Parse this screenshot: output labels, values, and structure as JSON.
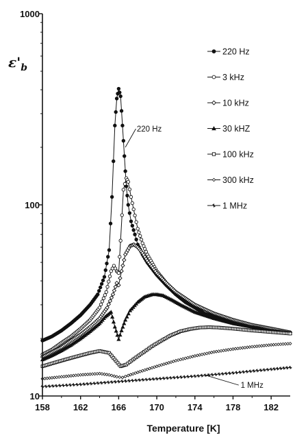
{
  "chart_data": {
    "type": "line",
    "ylabel": "ε'b",
    "xlabel": "Temperature [K]",
    "xlim": [
      158,
      184
    ],
    "ylim": [
      10,
      1000
    ],
    "yscale": "log",
    "x_ticks": [
      158,
      162,
      166,
      170,
      174,
      178,
      182
    ],
    "y_ticks": [
      10,
      100,
      1000
    ],
    "legend_position": "top-right",
    "grid": false,
    "annotations": [
      {
        "text": "220 Hz",
        "x": 166.6,
        "y": 230
      },
      {
        "text": "1 MHz",
        "x": 180,
        "y": 11.5
      }
    ],
    "series": [
      {
        "name": "220 Hz",
        "marker": "filled-circle",
        "x": [
          158,
          159,
          160,
          161,
          162,
          163,
          163.8,
          164.5,
          165,
          165.3,
          165.6,
          165.8,
          166,
          166.2,
          166.4,
          166.6,
          166.8,
          167,
          167.3,
          167.7,
          168,
          168.5,
          169,
          170,
          171,
          172,
          173,
          174,
          175,
          176,
          178,
          180,
          182,
          184
        ],
        "y": [
          19.5,
          20.5,
          22,
          24,
          26.5,
          30,
          34,
          42,
          58,
          110,
          260,
          360,
          405,
          370,
          260,
          180,
          125,
          100,
          82,
          70,
          62,
          55,
          50,
          43,
          38,
          34,
          31,
          29,
          27,
          26,
          24,
          23,
          22,
          21.5
        ]
      },
      {
        "name": "3 kHz",
        "marker": "open-circle",
        "x": [
          158,
          159,
          160,
          161,
          162,
          163,
          164,
          164.7,
          165.2,
          165.5,
          165.8,
          166,
          166.2,
          166.5,
          166.8,
          167,
          167.3,
          167.7,
          168,
          168.5,
          169,
          170,
          171,
          172,
          174,
          176,
          178,
          180,
          182,
          184
        ],
        "y": [
          16.5,
          17.5,
          19,
          20.5,
          22.5,
          25,
          29,
          35,
          45,
          48,
          45,
          44,
          65,
          120,
          138,
          132,
          110,
          88,
          75,
          63,
          55,
          45,
          39,
          35,
          30,
          27,
          25,
          23.5,
          22.5,
          21.5
        ]
      },
      {
        "name": "10 kHz",
        "marker": "diamond",
        "x": [
          158,
          159,
          160,
          161,
          162,
          163,
          164,
          164.8,
          165.4,
          165.8,
          166,
          166.3,
          166.7,
          167.2,
          167.6,
          168,
          168.5,
          169,
          170,
          171,
          172,
          174,
          176,
          178,
          180,
          182,
          184
        ],
        "y": [
          16,
          17,
          18,
          19.5,
          21,
          23,
          25.5,
          29,
          34,
          39,
          38,
          45,
          55,
          61,
          62,
          60,
          56,
          51,
          44,
          39,
          35,
          30,
          27,
          25,
          23.5,
          22.5,
          21.5
        ]
      },
      {
        "name": "30 kHZ",
        "marker": "triangle",
        "x": [
          158,
          159,
          160,
          161,
          162,
          163,
          164,
          164.6,
          165.2,
          165.6,
          166,
          166.3,
          166.7,
          167.2,
          168,
          168.7,
          169.5,
          170,
          170.7,
          171.5,
          172.5,
          174,
          176,
          178,
          180,
          182,
          184
        ],
        "y": [
          15.5,
          16.3,
          17.3,
          18.5,
          20,
          21.8,
          24,
          26,
          27.5,
          23,
          19.8,
          22,
          25,
          28,
          31,
          33,
          34,
          34,
          33.5,
          32,
          30,
          27.5,
          25.5,
          24,
          23,
          22,
          21.3
        ]
      },
      {
        "name": "100 kHz",
        "marker": "open-square",
        "x": [
          158,
          159,
          160,
          161,
          162,
          163,
          164,
          165,
          165.6,
          166.2,
          166.8,
          167.5,
          168.5,
          169.5,
          170.5,
          171.5,
          172.5,
          173.5,
          174.5,
          175.5,
          176.5,
          178,
          180,
          182,
          184
        ],
        "y": [
          14.3,
          14.8,
          15.3,
          15.8,
          16.3,
          16.8,
          17.2,
          16.8,
          15.5,
          14.3,
          14.6,
          15.5,
          16.8,
          18.2,
          19.5,
          20.8,
          21.8,
          22.4,
          22.8,
          22.9,
          22.8,
          22.5,
          22,
          21.6,
          21.2
        ]
      },
      {
        "name": "300 kHz",
        "marker": "small-diamond",
        "x": [
          158,
          160,
          162,
          164,
          165,
          165.8,
          166.4,
          167,
          168,
          170,
          172,
          174,
          176,
          178,
          180,
          182,
          184
        ],
        "y": [
          12.3,
          12.6,
          12.9,
          13.1,
          12.9,
          12.6,
          12.5,
          12.8,
          13.3,
          14.3,
          15.3,
          16.2,
          17,
          17.6,
          18.1,
          18.5,
          18.8
        ]
      },
      {
        "name": "1 MHz",
        "marker": "star",
        "x": [
          158,
          162,
          166,
          170,
          174,
          178,
          182,
          184
        ],
        "y": [
          11.2,
          11.5,
          11.9,
          12.3,
          12.7,
          13.2,
          13.8,
          14.1
        ]
      }
    ]
  },
  "legend_marker_symbols": [
    "filled-circle",
    "open-circle",
    "diamond",
    "triangle",
    "open-square",
    "small-diamond",
    "star"
  ]
}
